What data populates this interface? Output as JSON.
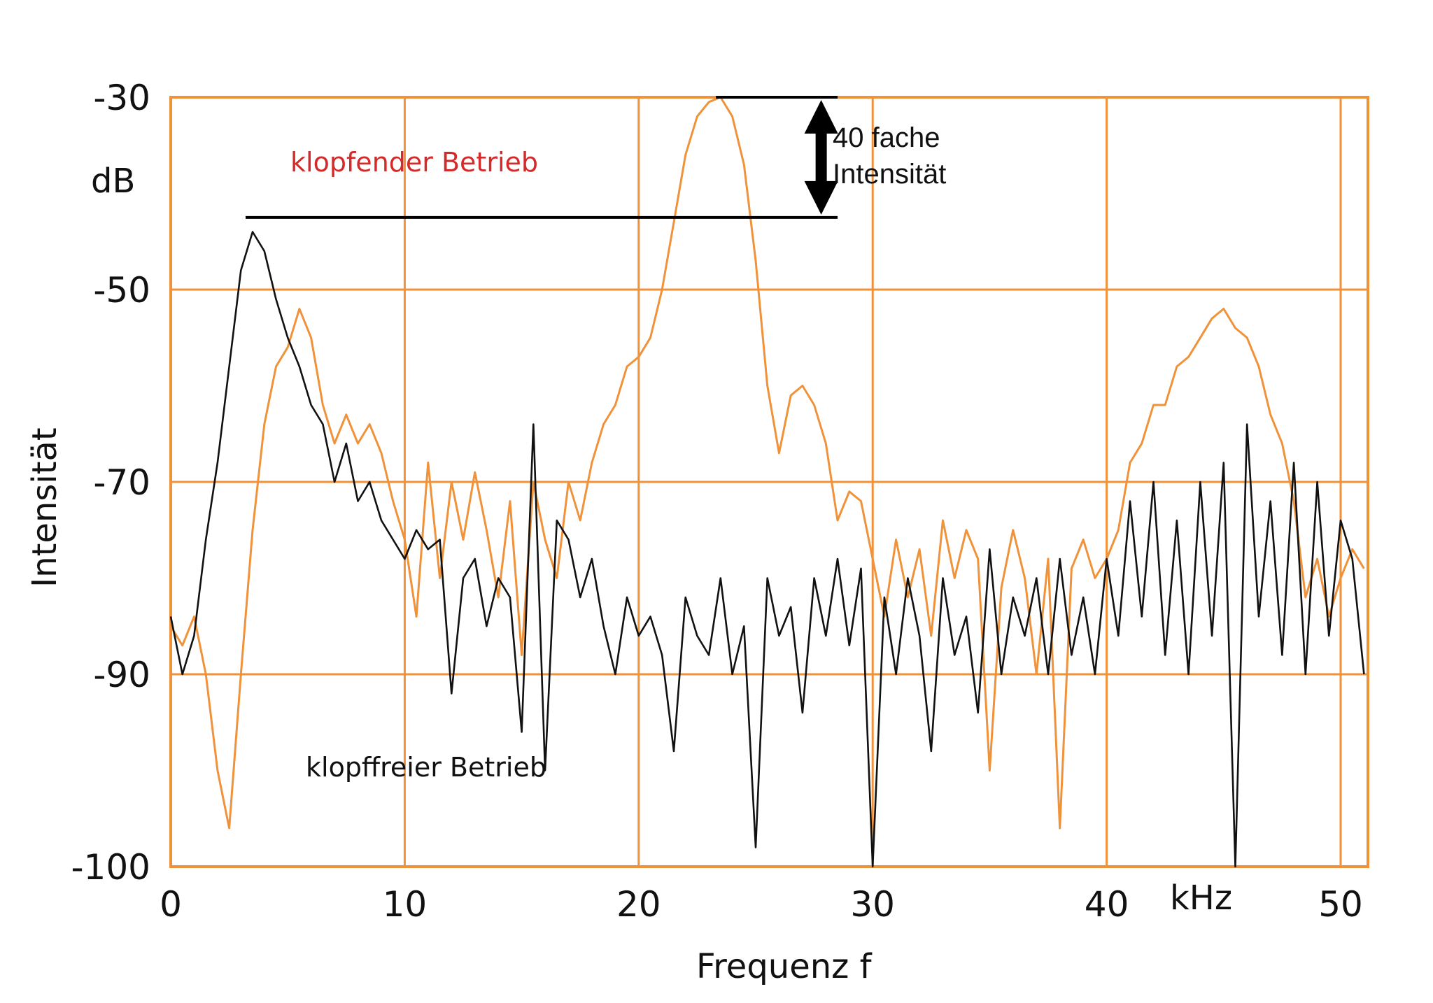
{
  "chart_data": {
    "type": "line",
    "title": "",
    "xlabel": "Frequenz f",
    "x_unit_label": "kHz",
    "ylabel": "Intensität",
    "y_unit_label": "dB",
    "xlim": [
      0,
      51
    ],
    "ylim": [
      -100,
      -30
    ],
    "grid": true,
    "x_ticks": [
      0,
      10,
      20,
      30,
      40,
      50
    ],
    "x_tick_labels": [
      "0",
      "10",
      "20",
      "30",
      "40",
      "50"
    ],
    "y_ticks": [
      -30,
      -50,
      -70,
      -90,
      -100
    ],
    "y_tick_labels": [
      "-30",
      "-50",
      "-70",
      "-90",
      "-100"
    ],
    "colors": {
      "grid": "#f0923a",
      "knock": "#f0923a",
      "normal": "#111111",
      "knock_label": "#d42a2a"
    },
    "x": [
      0,
      0.5,
      1,
      1.5,
      2,
      2.5,
      3,
      3.5,
      4,
      4.5,
      5,
      5.5,
      6,
      6.5,
      7,
      7.5,
      8,
      8.5,
      9,
      9.5,
      10,
      10.5,
      11,
      11.5,
      12,
      12.5,
      13,
      13.5,
      14,
      14.5,
      15,
      15.5,
      16,
      16.5,
      17,
      17.5,
      18,
      18.5,
      19,
      19.5,
      20,
      20.5,
      21,
      21.5,
      22,
      22.5,
      23,
      23.5,
      24,
      24.5,
      25,
      25.5,
      26,
      26.5,
      27,
      27.5,
      28,
      28.5,
      29,
      29.5,
      30,
      30.5,
      31,
      31.5,
      32,
      32.5,
      33,
      33.5,
      34,
      34.5,
      35,
      35.5,
      36,
      36.5,
      37,
      37.5,
      38,
      38.5,
      39,
      39.5,
      40,
      40.5,
      41,
      41.5,
      42,
      42.5,
      43,
      43.5,
      44,
      44.5,
      45,
      45.5,
      46,
      46.5,
      47,
      47.5,
      48,
      48.5,
      49,
      49.5,
      50,
      50.5,
      51
    ],
    "series": [
      {
        "name": "klopfender Betrieb",
        "color": "#f0923a",
        "values": [
          -85,
          -87,
          -84,
          -90,
          -95,
          -98,
          -90,
          -75,
          -64,
          -58,
          -56,
          -52,
          -55,
          -62,
          -66,
          -63,
          -66,
          -64,
          -67,
          -72,
          -76,
          -84,
          -68,
          -80,
          -70,
          -76,
          -69,
          -75,
          -82,
          -72,
          -88,
          -70,
          -76,
          -80,
          -70,
          -74,
          -68,
          -64,
          -62,
          -58,
          -57,
          -55,
          -50,
          -43,
          -36,
          -32,
          -30.5,
          -30,
          -32,
          -37,
          -47,
          -60,
          -67,
          -61,
          -60,
          -62,
          -66,
          -74,
          -71,
          -72,
          -78,
          -84,
          -76,
          -82,
          -77,
          -86,
          -74,
          -80,
          -75,
          -78,
          -95,
          -81,
          -75,
          -80,
          -90,
          -78,
          -98,
          -79,
          -76,
          -80,
          -78,
          -75,
          -68,
          -66,
          -62,
          -62,
          -58,
          -57,
          -55,
          -53,
          -52,
          -54,
          -55,
          -58,
          -63,
          -66,
          -72,
          -82,
          -78,
          -84,
          -80,
          -77,
          -79
        ]
      },
      {
        "name": "klopffreier Betrieb",
        "color": "#111111",
        "values": [
          -84,
          -90,
          -86,
          -76,
          -68,
          -58,
          -48,
          -44,
          -46,
          -51,
          -55,
          -58,
          -62,
          -64,
          -70,
          -66,
          -72,
          -70,
          -74,
          -76,
          -78,
          -75,
          -77,
          -76,
          -91,
          -80,
          -78,
          -85,
          -80,
          -82,
          -93,
          -64,
          -95,
          -74,
          -76,
          -82,
          -78,
          -85,
          -90,
          -82,
          -86,
          -84,
          -88,
          -94,
          -82,
          -86,
          -88,
          -80,
          -90,
          -85,
          -99,
          -80,
          -86,
          -83,
          -92,
          -80,
          -86,
          -78,
          -87,
          -79,
          -100,
          -82,
          -90,
          -80,
          -86,
          -94,
          -80,
          -88,
          -84,
          -92,
          -77,
          -90,
          -82,
          -86,
          -80,
          -90,
          -78,
          -88,
          -82,
          -90,
          -78,
          -86,
          -72,
          -84,
          -70,
          -88,
          -74,
          -90,
          -70,
          -86,
          -68,
          -100,
          -64,
          -84,
          -72,
          -88,
          -68,
          -90,
          -70,
          -86,
          -74,
          -78,
          -90
        ]
      }
    ],
    "annotations": {
      "knock_label": "klopfender Betrieb",
      "normal_label": "klopffreier Betrieb",
      "ratio_line1": "40 fache",
      "ratio_line2": "Intensität",
      "peak_knock_db": -30,
      "peak_normal_db": -42.5,
      "marker_x_start_knock": 23.3,
      "marker_x_start_normal": 3.2,
      "marker_x_end": 28.5,
      "arrow_x": 27.8
    }
  }
}
